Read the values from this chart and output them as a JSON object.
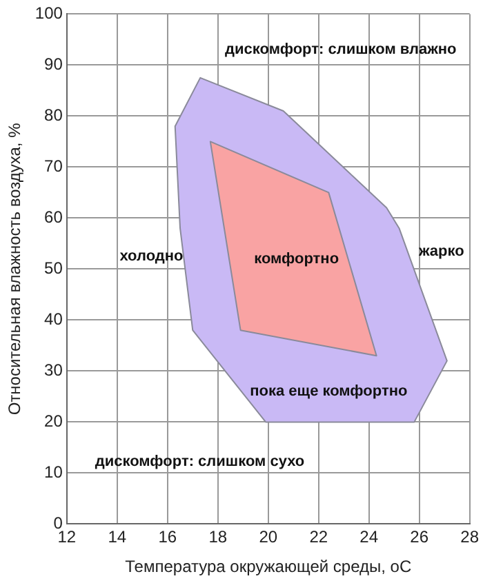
{
  "chart_data": {
    "type": "area",
    "xlabel": "Температура окружающей среды, оС",
    "ylabel": "Относительная влажность воздуха, %",
    "series": [
      {
        "color": "#c9b9f5",
        "x": [
          17.3,
          20.6,
          24.7,
          25.2,
          27.1,
          25.8,
          19.9,
          17.0,
          16.5,
          16.3
        ],
        "values": [
          87.5,
          81,
          62,
          58,
          32,
          20,
          20,
          38,
          58,
          78
        ]
      },
      {
        "color": "#f9a3a3",
        "x": [
          17.7,
          22.4,
          24.3,
          18.9
        ],
        "values": [
          75,
          65,
          33,
          38
        ]
      }
    ],
    "xlim": [
      12,
      28
    ],
    "xticks": [
      12,
      14,
      16,
      18,
      20,
      22,
      24,
      26,
      28
    ],
    "ylim": [
      0,
      100
    ],
    "yticks": [
      0,
      10,
      20,
      30,
      40,
      50,
      60,
      70,
      80,
      90,
      100
    ],
    "grid": true,
    "annotations": [
      "дискомфорт: слишком влажно",
      "холодно",
      "комфортно",
      "жарко",
      "пока еще комфортно",
      "дискомфорт: слишком сухо"
    ]
  }
}
